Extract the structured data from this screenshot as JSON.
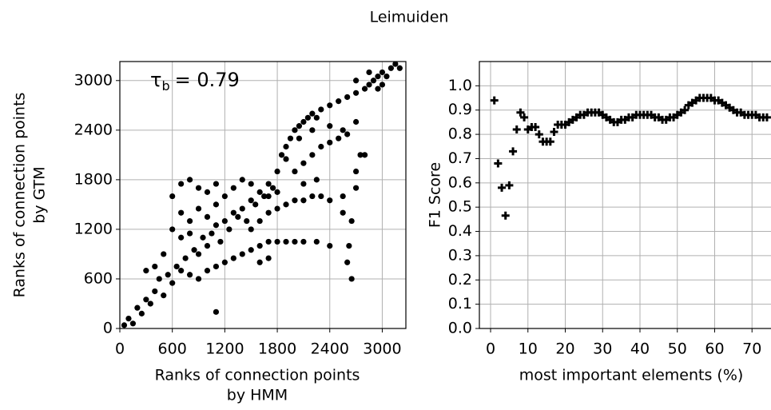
{
  "title": "Leimuiden",
  "chart_data": [
    {
      "type": "scatter",
      "marker": "circle",
      "color": "#000000",
      "xlabel": [
        "Ranks of connection points",
        "by HMM"
      ],
      "ylabel": [
        "Ranks of connection points",
        "by GTM"
      ],
      "annotation": {
        "symbol": "τ",
        "subscript": "b",
        "text": "= 0.79"
      },
      "xlim": [
        0,
        3270
      ],
      "ylim": [
        0,
        3230
      ],
      "xticks": [
        0,
        600,
        1200,
        1800,
        2400,
        3000
      ],
      "yticks": [
        0,
        600,
        1200,
        1800,
        2400,
        3000
      ],
      "grid": true,
      "x": [
        50,
        100,
        150,
        200,
        250,
        300,
        350,
        400,
        450,
        500,
        550,
        600,
        650,
        700,
        750,
        800,
        850,
        900,
        950,
        1000,
        1050,
        1100,
        1150,
        1200,
        1250,
        1300,
        1350,
        1400,
        1450,
        1500,
        1550,
        1600,
        1650,
        1700,
        1750,
        1800,
        1850,
        1900,
        1950,
        2000,
        2050,
        2100,
        2150,
        2200,
        2250,
        2300,
        2400,
        2500,
        2600,
        2700,
        2800,
        2850,
        2900,
        2950,
        3000,
        3050,
        3100,
        3150,
        3200,
        2950,
        3000,
        2700,
        2850,
        600,
        700,
        800,
        900,
        1000,
        1100,
        1200,
        1300,
        1400,
        1500,
        700,
        800,
        900,
        1000,
        1100,
        600,
        700,
        800,
        500,
        400,
        300,
        900,
        1000,
        1100,
        1200,
        1300,
        1400,
        1500,
        1600,
        1700,
        1800,
        1900,
        2000,
        2100,
        2250,
        2400,
        1100,
        1600,
        1700,
        1500,
        1600,
        1700,
        1800,
        1900,
        2000,
        2100,
        2200,
        2300,
        2400,
        2550,
        2550,
        1700,
        1800,
        2000,
        2100,
        2200,
        2300,
        2400,
        2500,
        2600,
        1900,
        2050,
        2200,
        2400,
        2550,
        2700,
        2750,
        2700,
        2700,
        2650,
        2620,
        2600,
        2650,
        2800,
        2100,
        2250
      ],
      "y": [
        40,
        120,
        60,
        250,
        180,
        350,
        300,
        450,
        600,
        400,
        650,
        550,
        750,
        700,
        850,
        650,
        950,
        900,
        1100,
        1000,
        1150,
        1250,
        1050,
        1300,
        1200,
        1400,
        1350,
        1450,
        1300,
        1550,
        1500,
        1650,
        1600,
        1750,
        1700,
        1900,
        2100,
        2200,
        2300,
        2400,
        2450,
        2500,
        2550,
        2600,
        2550,
        2650,
        2700,
        2750,
        2800,
        2850,
        2900,
        2950,
        3000,
        3050,
        3100,
        3050,
        3150,
        3200,
        3150,
        2900,
        2950,
        3000,
        3100,
        1600,
        1750,
        1800,
        1700,
        1650,
        1750,
        1600,
        1700,
        1800,
        1750,
        1400,
        1300,
        1450,
        1350,
        1500,
        1200,
        1100,
        1150,
        900,
        750,
        700,
        600,
        700,
        750,
        800,
        850,
        900,
        950,
        1000,
        1050,
        1050,
        1050,
        1050,
        1050,
        1050,
        1000,
        200,
        800,
        850,
        1200,
        1300,
        1400,
        1450,
        1500,
        1550,
        1550,
        1600,
        1600,
        1550,
        1600,
        1400,
        1600,
        1650,
        1900,
        2000,
        2100,
        2200,
        2250,
        2300,
        2350,
        2050,
        2300,
        2400,
        2450,
        2400,
        2500,
        2100,
        1900,
        1700,
        1300,
        1000,
        800,
        600,
        2100,
        1750,
        1800
      ]
    },
    {
      "type": "scatter",
      "marker": "plus",
      "color": "#000000",
      "xlabel": [
        "most important elements (%)"
      ],
      "ylabel": [
        "F1 Score"
      ],
      "xlim": [
        -3,
        75.3
      ],
      "ylim": [
        0,
        1.1
      ],
      "xticks": [
        0,
        10,
        20,
        30,
        40,
        50,
        60,
        70
      ],
      "yticks": [
        {
          "value": 0,
          "label": "0.0"
        },
        0.1,
        0.2,
        0.3,
        0.4,
        0.5,
        0.6,
        0.7,
        0.8,
        0.9,
        {
          "value": 1,
          "label": "1.0"
        }
      ],
      "grid": true,
      "x": [
        1,
        2,
        3,
        4,
        5,
        6,
        7,
        8,
        9,
        10,
        11,
        12,
        13,
        14,
        15,
        16,
        17,
        18,
        19,
        20,
        21,
        22,
        23,
        24,
        25,
        26,
        27,
        28,
        29,
        30,
        31,
        32,
        33,
        34,
        35,
        36,
        37,
        38,
        39,
        40,
        41,
        42,
        43,
        44,
        45,
        46,
        47,
        48,
        49,
        50,
        51,
        52,
        53,
        54,
        55,
        56,
        57,
        58,
        59,
        60,
        61,
        62,
        63,
        64,
        65,
        66,
        67,
        68,
        69,
        70,
        71,
        72,
        73,
        74
      ],
      "y": [
        0.94,
        0.68,
        0.58,
        0.465,
        0.59,
        0.73,
        0.82,
        0.89,
        0.87,
        0.82,
        0.83,
        0.83,
        0.8,
        0.77,
        0.77,
        0.77,
        0.81,
        0.84,
        0.84,
        0.84,
        0.85,
        0.86,
        0.87,
        0.88,
        0.88,
        0.89,
        0.89,
        0.89,
        0.89,
        0.88,
        0.87,
        0.86,
        0.85,
        0.85,
        0.86,
        0.86,
        0.87,
        0.87,
        0.88,
        0.88,
        0.88,
        0.88,
        0.88,
        0.87,
        0.87,
        0.86,
        0.86,
        0.87,
        0.87,
        0.88,
        0.89,
        0.9,
        0.92,
        0.93,
        0.94,
        0.95,
        0.95,
        0.95,
        0.95,
        0.94,
        0.94,
        0.93,
        0.92,
        0.91,
        0.9,
        0.89,
        0.89,
        0.88,
        0.88,
        0.88,
        0.88,
        0.87,
        0.87,
        0.87
      ]
    }
  ]
}
